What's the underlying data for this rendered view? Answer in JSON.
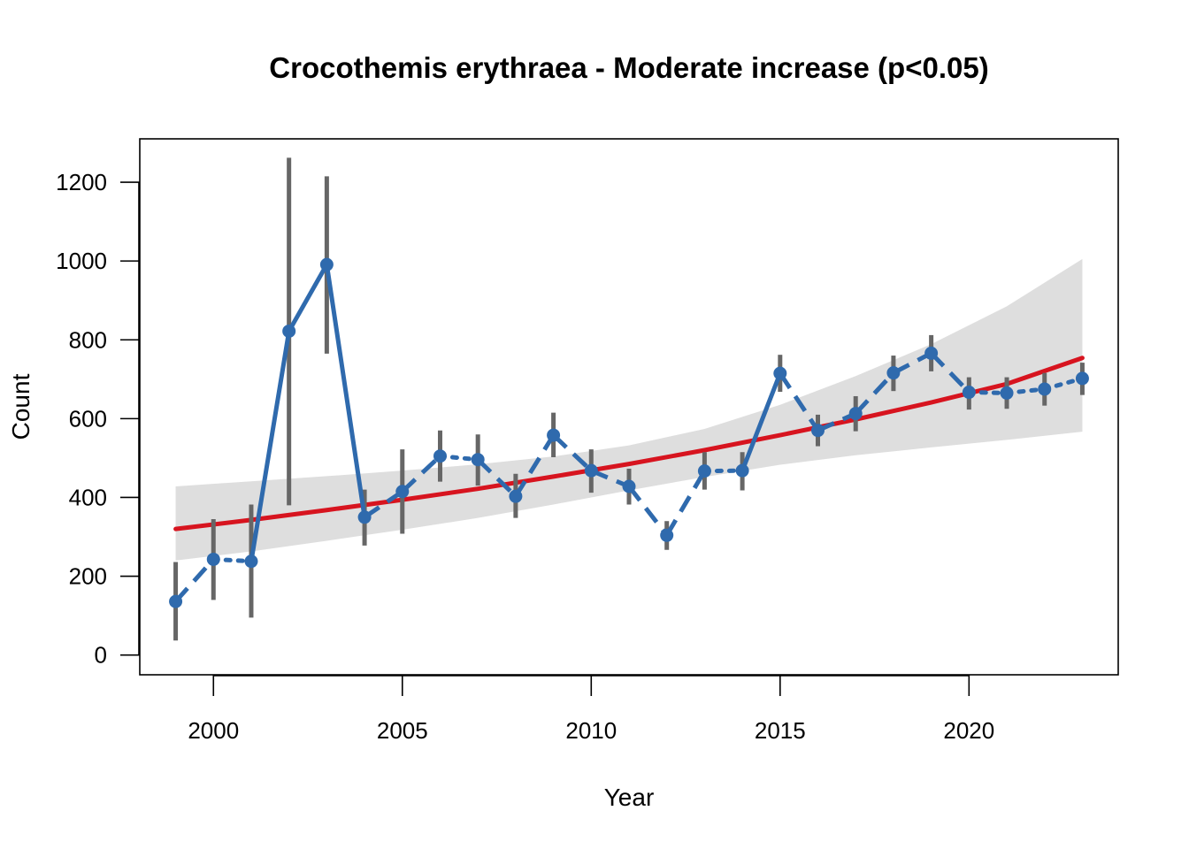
{
  "chart_data": {
    "type": "line",
    "title": "Crocothemis erythraea - Moderate increase (p<0.05)",
    "xlabel": "Year",
    "ylabel": "Count",
    "xlim": [
      1998.05,
      2023.95
    ],
    "ylim": [
      -50,
      1310
    ],
    "x_ticks": [
      2000,
      2005,
      2010,
      2015,
      2020
    ],
    "y_ticks": [
      0,
      200,
      400,
      600,
      800,
      1000,
      1200
    ],
    "grid": false,
    "legend": "none",
    "colors": {
      "observed": "#2f6aad",
      "error_bar": "#666666",
      "trend": "#d7141f",
      "ci_band": "#dedede"
    },
    "series": [
      {
        "kind": "observed",
        "x": [
          1999,
          2000,
          2001,
          2002,
          2003,
          2004,
          2005,
          2006,
          2007,
          2008,
          2009,
          2010,
          2011,
          2012,
          2013,
          2014,
          2015,
          2016,
          2017,
          2018,
          2019,
          2020,
          2021,
          2022,
          2023
        ],
        "y": [
          136,
          243,
          238,
          822,
          991,
          350,
          415,
          505,
          496,
          403,
          558,
          468,
          428,
          304,
          467,
          468,
          715,
          570,
          613,
          716,
          766,
          667,
          665,
          675,
          702
        ],
        "err_low": [
          37,
          140,
          95,
          380,
          765,
          278,
          308,
          440,
          430,
          348,
          502,
          412,
          382,
          267,
          420,
          418,
          668,
          530,
          568,
          670,
          720,
          623,
          625,
          633,
          660
        ],
        "err_high": [
          236,
          345,
          382,
          1262,
          1215,
          420,
          522,
          570,
          560,
          460,
          615,
          522,
          473,
          340,
          515,
          515,
          762,
          610,
          657,
          760,
          812,
          705,
          705,
          716,
          742
        ],
        "segment_styles": [
          "dashed",
          "dotted",
          "solid",
          "solid",
          "solid",
          "dashed",
          "dashed",
          "dotted",
          "dashed",
          "dashed",
          "dashed",
          "dashed",
          "dashed",
          "dashed",
          "dotted",
          "solid",
          "dashed",
          "dashed",
          "dashed",
          "dashed",
          "dashed",
          "dotted",
          "dotted",
          "dotted"
        ]
      },
      {
        "kind": "trend",
        "x": [
          1999,
          2001,
          2003,
          2005,
          2007,
          2009,
          2011,
          2013,
          2015,
          2017,
          2019,
          2021,
          2023
        ],
        "y": [
          320,
          343,
          368,
          394,
          422,
          453,
          485,
          520,
          558,
          598,
          641,
          688,
          754
        ]
      },
      {
        "kind": "ci_band",
        "x": [
          1999,
          2001,
          2003,
          2005,
          2007,
          2009,
          2011,
          2013,
          2015,
          2017,
          2019,
          2021,
          2023
        ],
        "lower": [
          240,
          263,
          290,
          318,
          348,
          382,
          418,
          452,
          483,
          507,
          527,
          546,
          567
        ],
        "upper": [
          428,
          441,
          454,
          468,
          484,
          504,
          532,
          574,
          635,
          708,
          789,
          885,
          1005
        ]
      }
    ]
  }
}
